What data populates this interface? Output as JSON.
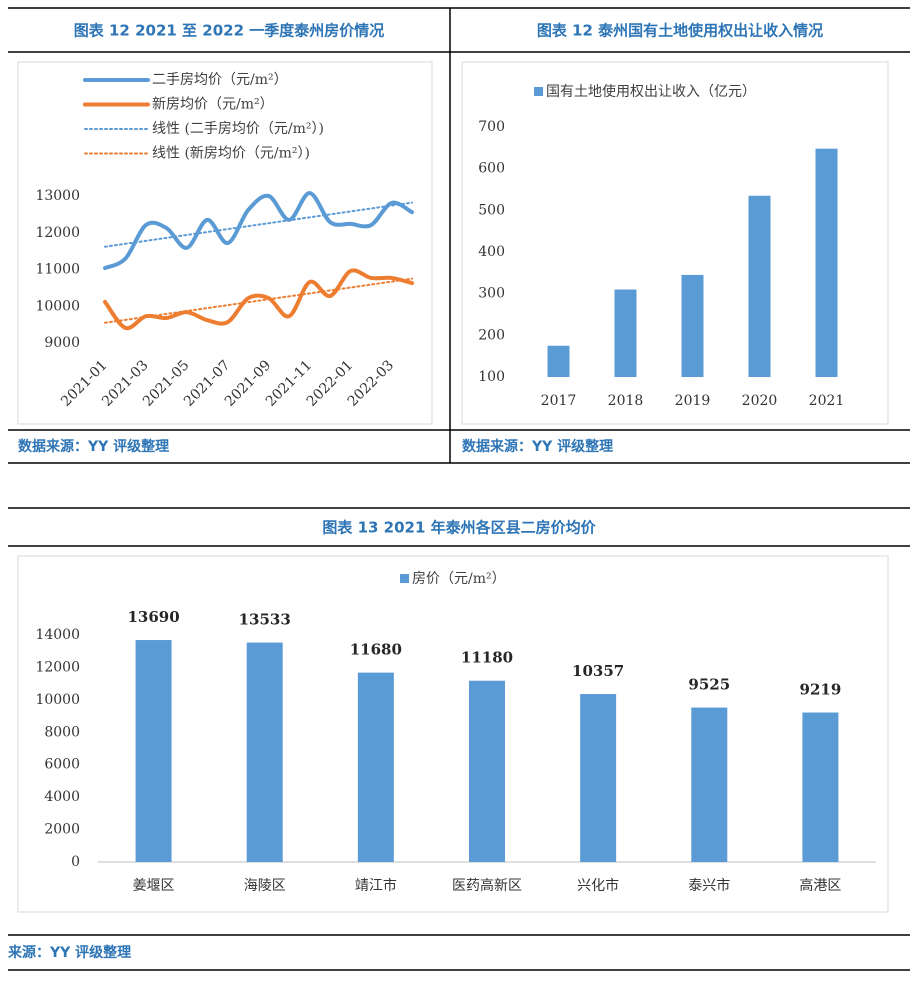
{
  "chart_data": [
    {
      "type": "line",
      "title": "图表 12 2021 至 2022 一季度泰州房价情况",
      "source": "数据来源：YY 评级整理",
      "categories": [
        "2021-01",
        null,
        "2021-03",
        null,
        "2021-05",
        null,
        "2021-07",
        null,
        "2021-09",
        null,
        "2021-11",
        null,
        "2022-01",
        null,
        "2022-03",
        null
      ],
      "series": [
        {
          "name": "二手房均价（元/m²）",
          "color": "#5b9bd5",
          "style": "solid",
          "values": [
            11040,
            11300,
            12210,
            12130,
            11590,
            12350,
            11720,
            12620,
            13000,
            12350,
            13080,
            12290,
            12240,
            12210,
            12810,
            12560
          ]
        },
        {
          "name": "新房均价（元/m²）",
          "color": "#ed7d31",
          "style": "solid",
          "values": [
            10120,
            9410,
            9730,
            9680,
            9840,
            9620,
            9570,
            10220,
            10220,
            9730,
            10660,
            10280,
            10960,
            10770,
            10770,
            10630
          ]
        },
        {
          "name": "线性 (二手房均价（元/m²）)",
          "color": "#5b9bd5",
          "style": "dotted",
          "values": [
            11620,
            11700,
            11780,
            11860,
            11940,
            12020,
            12100,
            12180,
            12260,
            12340,
            12420,
            12500,
            12580,
            12660,
            12740,
            12820
          ]
        },
        {
          "name": "线性 (新房均价（元/m²）)",
          "color": "#ed7d31",
          "style": "dotted",
          "values": [
            9550,
            9630,
            9710,
            9790,
            9870,
            9950,
            10030,
            10110,
            10190,
            10270,
            10350,
            10430,
            10510,
            10590,
            10670,
            10750
          ]
        }
      ],
      "ylim": [
        9000,
        13000
      ],
      "yticks": [
        9000,
        10000,
        11000,
        12000,
        13000
      ]
    },
    {
      "type": "bar",
      "title": "图表 12 泰州国有土地使用权出让收入情况",
      "source": "数据来源：YY 评级整理",
      "categories": [
        "2017",
        "2018",
        "2019",
        "2020",
        "2021"
      ],
      "series": [
        {
          "name": "国有土地使用权出让收入（亿元）",
          "color": "#5b9bd5",
          "values": [
            175,
            310,
            345,
            535,
            648
          ]
        }
      ],
      "ylim": [
        100,
        700
      ],
      "yticks": [
        100,
        200,
        300,
        400,
        500,
        600,
        700
      ]
    },
    {
      "type": "bar",
      "title": "图表 13 2021 年泰州各区县二房价均价",
      "source": "来源：YY 评级整理",
      "categories": [
        "姜堰区",
        "海陵区",
        "靖江市",
        "医药高新区",
        "兴化市",
        "泰兴市",
        "高港区"
      ],
      "series": [
        {
          "name": "房价（元/m²）",
          "color": "#5b9bd5",
          "values": [
            13690,
            13533,
            11680,
            11180,
            10357,
            9525,
            9219
          ]
        }
      ],
      "data_labels": true,
      "ylim": [
        0,
        14000
      ],
      "yticks": [
        0,
        2000,
        4000,
        6000,
        8000,
        10000,
        12000,
        14000
      ]
    }
  ]
}
